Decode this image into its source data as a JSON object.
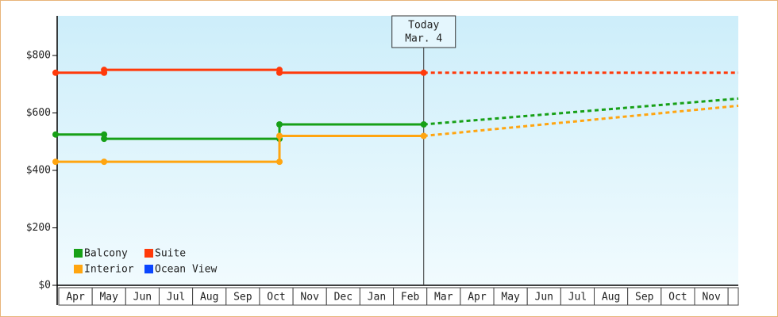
{
  "chart_data": {
    "type": "line",
    "xlim": [
      0,
      20.4
    ],
    "ylim": [
      0,
      938
    ],
    "yticks": [
      {
        "value": 0,
        "label": "$0"
      },
      {
        "value": 200,
        "label": "$200"
      },
      {
        "value": 400,
        "label": "$400"
      },
      {
        "value": 600,
        "label": "$600"
      },
      {
        "value": 800,
        "label": "$800"
      }
    ],
    "categories": [
      "Apr",
      "May",
      "Jun",
      "Jul",
      "Aug",
      "Sep",
      "Oct",
      "Nov",
      "Dec",
      "Jan",
      "Feb",
      "Mar",
      "Apr",
      "May",
      "Jun",
      "Jul",
      "Aug",
      "Sep",
      "Oct",
      "Nov"
    ],
    "annotation": {
      "x": 11,
      "lines": [
        "Today",
        "Mar. 4"
      ]
    },
    "series": [
      {
        "name": "Balcony",
        "color": "#17a017",
        "x": [
          0,
          1.45,
          1.45,
          6.69,
          6.69,
          11
        ],
        "values": [
          525,
          525,
          510,
          510,
          560,
          560
        ],
        "projection": {
          "x": [
            11,
            20.4
          ],
          "values": [
            560,
            650
          ]
        }
      },
      {
        "name": "Suite",
        "color": "#ff3a0a",
        "x": [
          0,
          1.45,
          1.45,
          6.69,
          6.69,
          11
        ],
        "values": [
          740,
          740,
          750,
          750,
          740,
          740
        ],
        "projection": {
          "x": [
            11,
            20.4
          ],
          "values": [
            740,
            740
          ]
        }
      },
      {
        "name": "Interior",
        "color": "#ffa510",
        "x": [
          0,
          1.45,
          6.69,
          6.69,
          11
        ],
        "values": [
          430,
          430,
          430,
          520,
          520
        ],
        "projection": {
          "x": [
            11,
            20.4
          ],
          "values": [
            520,
            625
          ]
        }
      },
      {
        "name": "Ocean View",
        "color": "#0a46ff",
        "x": [],
        "values": []
      }
    ]
  }
}
